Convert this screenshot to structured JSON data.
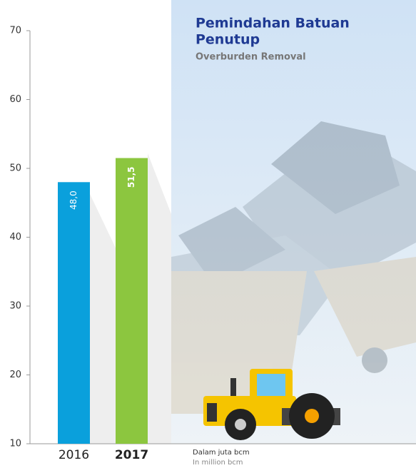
{
  "chart_data": {
    "type": "bar",
    "title": "Pemindahan Batuan",
    "title_line2": "Penutup",
    "subtitle": "Overburden Removal",
    "categories": [
      "2016",
      "2017"
    ],
    "values": [
      48.0,
      51.5
    ],
    "value_labels": [
      "48,0",
      "51,5"
    ],
    "colors": [
      "#0aa0dc",
      "#8cc63f"
    ],
    "ylim": [
      10,
      70
    ],
    "yticks": [
      10,
      20,
      30,
      40,
      50,
      60,
      70
    ],
    "unit_note": "Dalam juta bcm",
    "unit_note_en": "In million bcm"
  }
}
